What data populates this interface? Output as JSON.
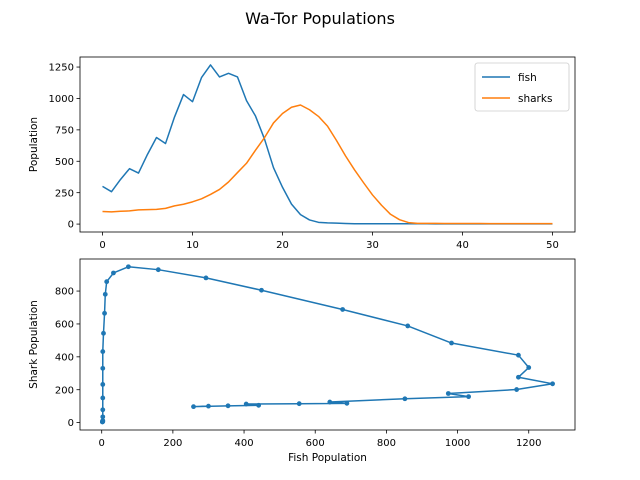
{
  "figure": {
    "suptitle": "Wa-Tor Populations"
  },
  "chart_data": [
    {
      "type": "line",
      "title": "",
      "xlabel": "",
      "ylabel": "Population",
      "xlim": [
        -2.5,
        52.5
      ],
      "ylim": [
        -63,
        1330
      ],
      "xticks": [
        0,
        10,
        20,
        30,
        40,
        50
      ],
      "yticks": [
        0,
        250,
        500,
        750,
        1000,
        1250
      ],
      "legend": "top-right",
      "series": [
        {
          "name": "fish",
          "color": "#1f77b4",
          "x": [
            0,
            1,
            2,
            3,
            4,
            5,
            6,
            7,
            8,
            9,
            10,
            11,
            12,
            13,
            14,
            15,
            16,
            17,
            18,
            19,
            20,
            21,
            22,
            23,
            24,
            25,
            26,
            27,
            28,
            29,
            30,
            31,
            32,
            33,
            34,
            35,
            36,
            37,
            38,
            39,
            40,
            41,
            42,
            43,
            44,
            45,
            46,
            47,
            48,
            49,
            50
          ],
          "values": [
            300,
            258,
            355,
            441,
            406,
            555,
            689,
            641,
            852,
            1031,
            974,
            1166,
            1267,
            1171,
            1200,
            1171,
            983,
            860,
            677,
            449,
            293,
            159,
            75,
            33,
            14,
            10,
            8,
            5,
            3,
            3,
            3,
            3,
            3,
            3,
            3,
            3,
            3,
            2,
            2,
            2,
            2,
            2,
            2,
            2,
            2,
            2,
            2,
            2,
            2,
            2,
            2
          ]
        },
        {
          "name": "sharks",
          "color": "#ff7f0e",
          "x": [
            0,
            1,
            2,
            3,
            4,
            5,
            6,
            7,
            8,
            9,
            10,
            11,
            12,
            13,
            14,
            15,
            16,
            17,
            18,
            19,
            20,
            21,
            22,
            23,
            24,
            25,
            26,
            27,
            28,
            29,
            30,
            31,
            32,
            33,
            34,
            35,
            36,
            37,
            38,
            39,
            40,
            41,
            42,
            43,
            44,
            45,
            46,
            47,
            48,
            49,
            50
          ],
          "values": [
            100,
            97,
            102,
            105,
            113,
            115,
            117,
            125,
            145,
            158,
            177,
            201,
            236,
            276,
            335,
            410,
            484,
            588,
            688,
            805,
            880,
            930,
            948,
            910,
            857,
            780,
            665,
            543,
            432,
            330,
            232,
            150,
            78,
            35,
            12,
            6,
            6,
            6,
            5,
            5,
            5,
            5,
            5,
            4,
            4,
            4,
            4,
            4,
            4,
            4,
            4
          ]
        }
      ]
    },
    {
      "type": "scatter",
      "title": "",
      "xlabel": "Fish Population",
      "ylabel": "Shark Population",
      "xlim": [
        -61,
        1330
      ],
      "ylim": [
        -45,
        995
      ],
      "xticks": [
        0,
        200,
        400,
        600,
        800,
        1000,
        1200
      ],
      "yticks": [
        0,
        200,
        400,
        600,
        800
      ],
      "connected": true,
      "color": "#1f77b4",
      "points": [
        [
          300,
          100
        ],
        [
          258,
          97
        ],
        [
          355,
          102
        ],
        [
          441,
          105
        ],
        [
          406,
          113
        ],
        [
          555,
          115
        ],
        [
          689,
          117
        ],
        [
          641,
          125
        ],
        [
          852,
          145
        ],
        [
          1031,
          158
        ],
        [
          974,
          177
        ],
        [
          1166,
          201
        ],
        [
          1267,
          236
        ],
        [
          1171,
          276
        ],
        [
          1200,
          335
        ],
        [
          1171,
          410
        ],
        [
          983,
          484
        ],
        [
          860,
          588
        ],
        [
          677,
          688
        ],
        [
          449,
          805
        ],
        [
          293,
          880
        ],
        [
          159,
          930
        ],
        [
          75,
          948
        ],
        [
          33,
          910
        ],
        [
          14,
          857
        ],
        [
          10,
          780
        ],
        [
          8,
          665
        ],
        [
          5,
          543
        ],
        [
          3,
          432
        ],
        [
          3,
          330
        ],
        [
          3,
          232
        ],
        [
          3,
          150
        ],
        [
          3,
          78
        ],
        [
          3,
          35
        ],
        [
          3,
          12
        ],
        [
          3,
          6
        ],
        [
          2,
          6
        ],
        [
          2,
          5
        ],
        [
          2,
          5
        ],
        [
          2,
          4
        ]
      ]
    }
  ]
}
